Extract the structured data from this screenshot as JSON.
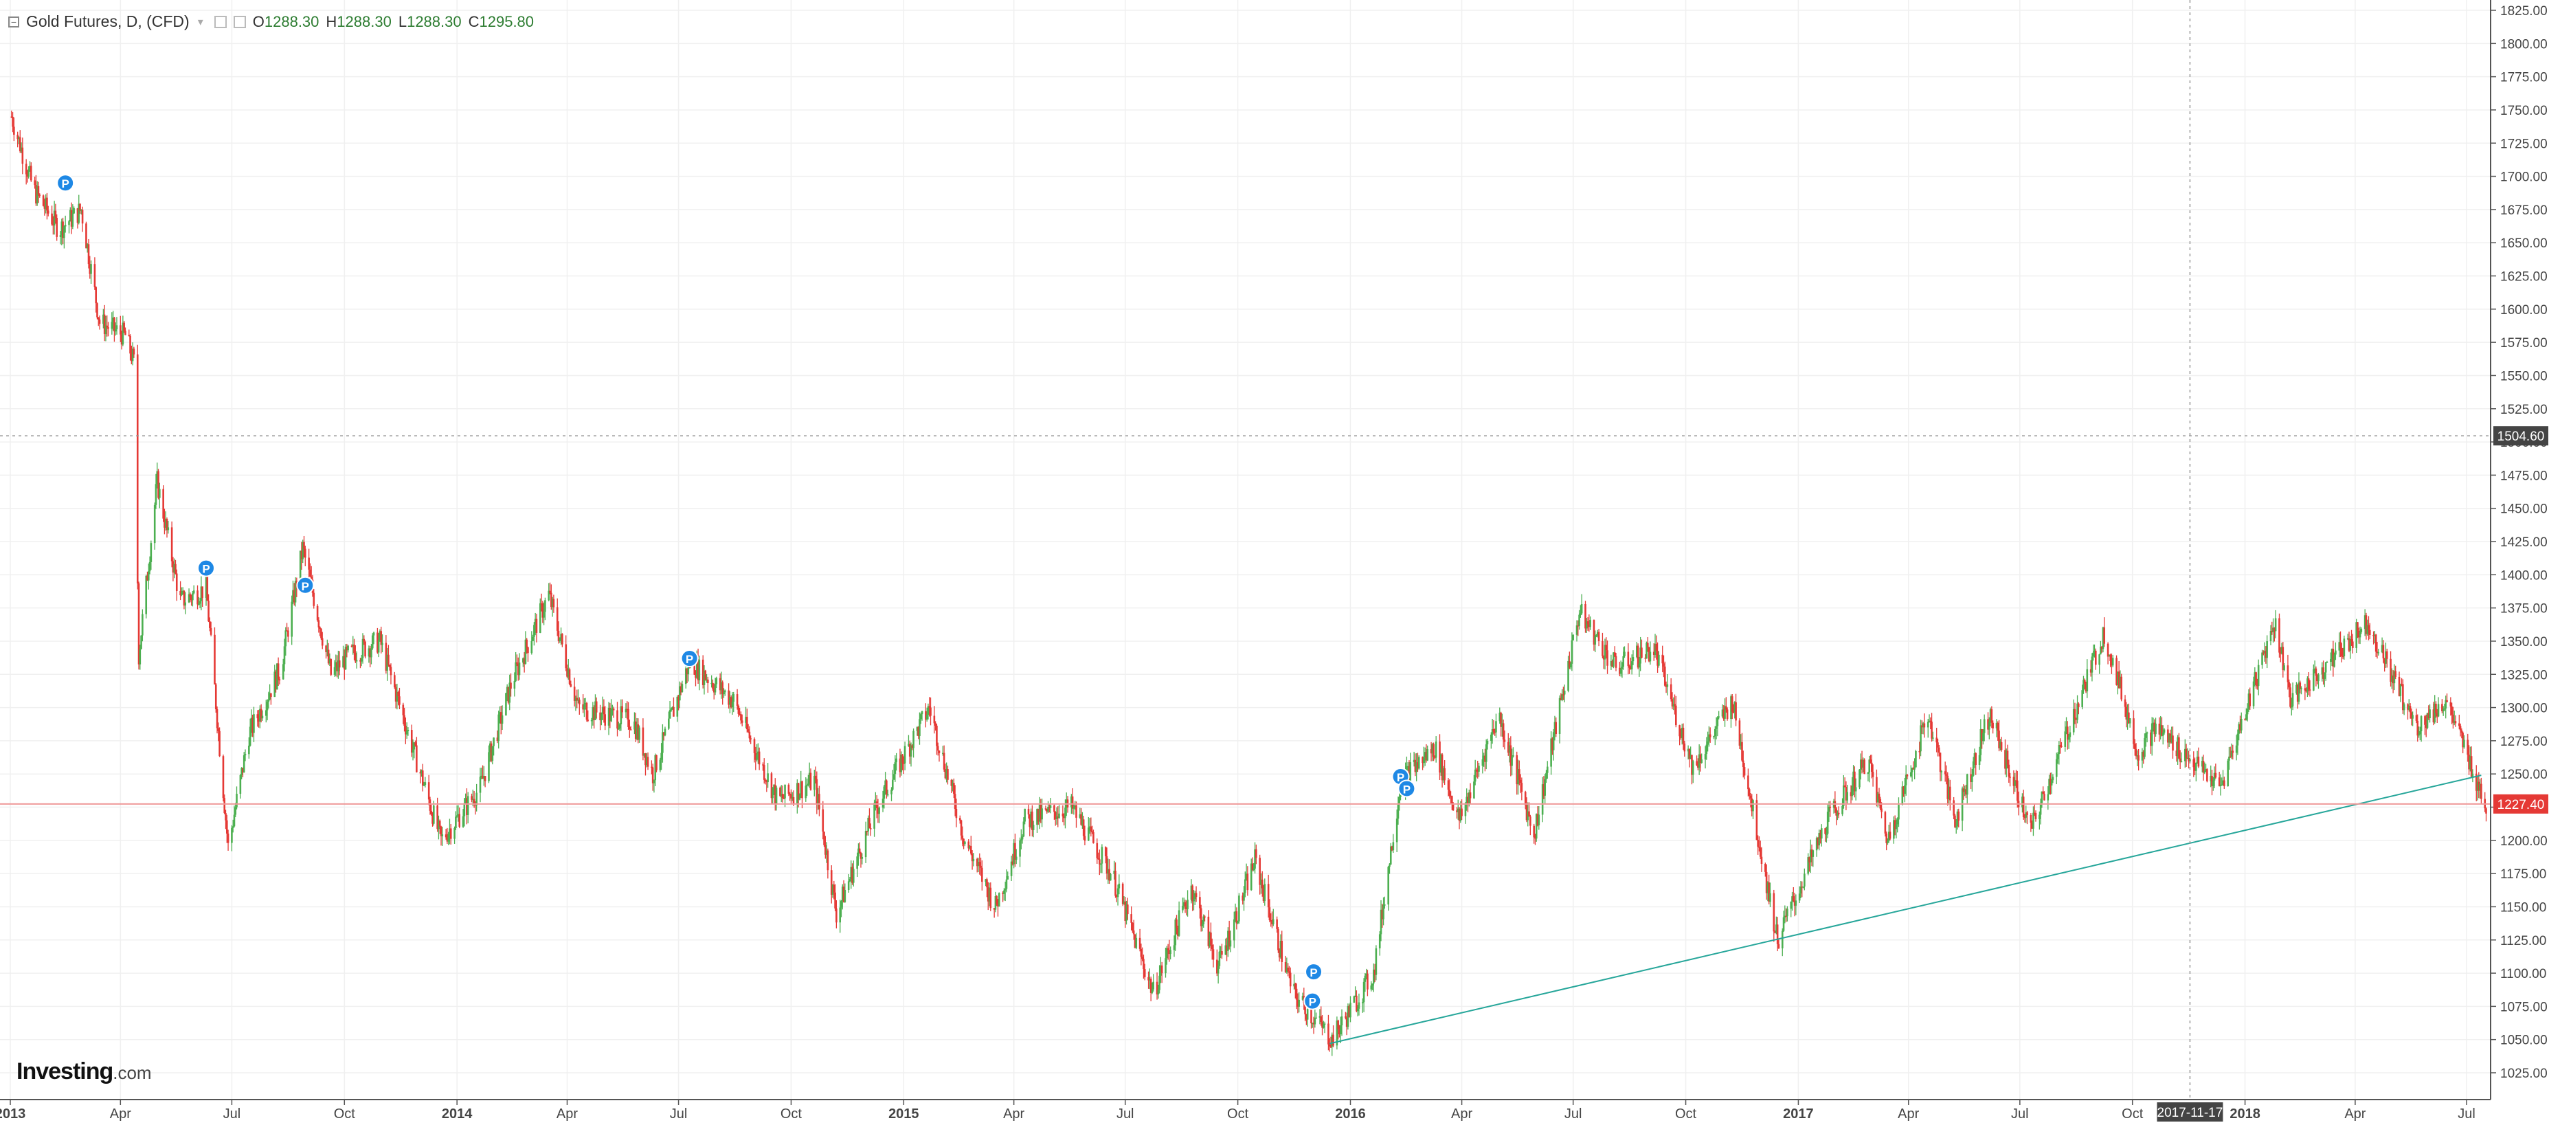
{
  "legend": {
    "symbol": "Gold Futures, D, (CFD)",
    "open_label": "O",
    "open": "1288.30",
    "high_label": "H",
    "high": "1288.30",
    "low_label": "L",
    "low": "1288.30",
    "close_label": "C",
    "close": "1295.80"
  },
  "logo": {
    "brand": "Investing",
    "suffix": ".com"
  },
  "colors": {
    "up": "#4caf50",
    "down": "#e53935",
    "trendline": "#26a69a",
    "price_line": "#ef9a9a",
    "price_badge": "#e53935",
    "crosshair_badge": "#444444",
    "marker": "#1e88e5",
    "grid": "#f0f0f0"
  },
  "crosshair": {
    "price": "1504.60",
    "date": "2017-11-17"
  },
  "chart_data": {
    "type": "candlestick",
    "title": "Gold Futures, D, (CFD)",
    "last_price": 1227.4,
    "ylim": [
      1012.5,
      1827.5
    ],
    "y_ticks": [
      "1025.00",
      "1050.00",
      "1075.00",
      "1100.00",
      "1125.00",
      "1150.00",
      "1175.00",
      "1200.00",
      "1225.00",
      "1250.00",
      "1275.00",
      "1300.00",
      "1325.00",
      "1350.00",
      "1375.00",
      "1400.00",
      "1425.00",
      "1450.00",
      "1475.00",
      "1500.00",
      "1525.00",
      "1550.00",
      "1575.00",
      "1600.00",
      "1625.00",
      "1650.00",
      "1675.00",
      "1700.00",
      "1725.00",
      "1750.00",
      "1775.00",
      "1800.00",
      "1825.00"
    ],
    "x_ticks": [
      {
        "label": "2013",
        "date": "2013-01-01",
        "bold": true
      },
      {
        "label": "Apr",
        "date": "2013-04-01"
      },
      {
        "label": "Jul",
        "date": "2013-07-01"
      },
      {
        "label": "Oct",
        "date": "2013-10-01"
      },
      {
        "label": "2014",
        "date": "2014-01-01",
        "bold": true
      },
      {
        "label": "Apr",
        "date": "2014-04-01"
      },
      {
        "label": "Jul",
        "date": "2014-07-01"
      },
      {
        "label": "Oct",
        "date": "2014-10-01"
      },
      {
        "label": "2015",
        "date": "2015-01-01",
        "bold": true
      },
      {
        "label": "Apr",
        "date": "2015-04-01"
      },
      {
        "label": "Jul",
        "date": "2015-07-01"
      },
      {
        "label": "Oct",
        "date": "2015-10-01"
      },
      {
        "label": "2016",
        "date": "2016-01-01",
        "bold": true
      },
      {
        "label": "Apr",
        "date": "2016-04-01"
      },
      {
        "label": "Jul",
        "date": "2016-07-01"
      },
      {
        "label": "Oct",
        "date": "2016-10-01"
      },
      {
        "label": "2017",
        "date": "2017-01-01",
        "bold": true
      },
      {
        "label": "Apr",
        "date": "2017-04-01"
      },
      {
        "label": "Jul",
        "date": "2017-07-01"
      },
      {
        "label": "Oct",
        "date": "2017-10-01"
      },
      {
        "label": "2018",
        "date": "2018-01-01",
        "bold": true
      },
      {
        "label": "Apr",
        "date": "2018-04-01"
      },
      {
        "label": "Jul",
        "date": "2018-07-01"
      }
    ],
    "trendline": {
      "from": {
        "date": "2015-12-15",
        "price": 1047
      },
      "to": {
        "date": "2018-07-13",
        "price": 1249
      }
    },
    "markers": [
      {
        "label": "P",
        "date": "2013-02-15",
        "price": 1695
      },
      {
        "label": "P",
        "date": "2013-06-10",
        "price": 1405
      },
      {
        "label": "P",
        "date": "2013-08-30",
        "price": 1392
      },
      {
        "label": "P",
        "date": "2014-07-10",
        "price": 1337
      },
      {
        "label": "P",
        "date": "2015-12-02",
        "price": 1101
      },
      {
        "label": "P",
        "date": "2015-12-01",
        "price": 1079
      },
      {
        "label": "P",
        "date": "2016-02-11",
        "price": 1248
      },
      {
        "label": "P",
        "date": "2016-02-16",
        "price": 1239
      }
    ],
    "price_path": [
      {
        "date": "2013-01-02",
        "price": 1745
      },
      {
        "date": "2013-01-20",
        "price": 1690
      },
      {
        "date": "2013-02-10",
        "price": 1660
      },
      {
        "date": "2013-02-28",
        "price": 1675
      },
      {
        "date": "2013-03-15",
        "price": 1590
      },
      {
        "date": "2013-04-05",
        "price": 1580
      },
      {
        "date": "2013-04-12",
        "price": 1560
      },
      {
        "date": "2013-04-16",
        "price": 1340
      },
      {
        "date": "2013-05-01",
        "price": 1470
      },
      {
        "date": "2013-05-20",
        "price": 1380
      },
      {
        "date": "2013-06-10",
        "price": 1390
      },
      {
        "date": "2013-06-28",
        "price": 1195
      },
      {
        "date": "2013-07-15",
        "price": 1280
      },
      {
        "date": "2013-08-10",
        "price": 1330
      },
      {
        "date": "2013-08-28",
        "price": 1420
      },
      {
        "date": "2013-09-20",
        "price": 1325
      },
      {
        "date": "2013-10-05",
        "price": 1340
      },
      {
        "date": "2013-10-30",
        "price": 1350
      },
      {
        "date": "2013-12-19",
        "price": 1200
      },
      {
        "date": "2014-01-20",
        "price": 1240
      },
      {
        "date": "2014-02-15",
        "price": 1320
      },
      {
        "date": "2014-03-17",
        "price": 1385
      },
      {
        "date": "2014-04-10",
        "price": 1300
      },
      {
        "date": "2014-05-25",
        "price": 1290
      },
      {
        "date": "2014-06-10",
        "price": 1250
      },
      {
        "date": "2014-07-10",
        "price": 1335
      },
      {
        "date": "2014-08-15",
        "price": 1305
      },
      {
        "date": "2014-09-20",
        "price": 1230
      },
      {
        "date": "2014-10-20",
        "price": 1245
      },
      {
        "date": "2014-11-07",
        "price": 1145
      },
      {
        "date": "2014-12-10",
        "price": 1225
      },
      {
        "date": "2015-01-22",
        "price": 1300
      },
      {
        "date": "2015-02-20",
        "price": 1200
      },
      {
        "date": "2015-03-17",
        "price": 1150
      },
      {
        "date": "2015-04-10",
        "price": 1215
      },
      {
        "date": "2015-05-18",
        "price": 1225
      },
      {
        "date": "2015-06-20",
        "price": 1175
      },
      {
        "date": "2015-07-24",
        "price": 1085
      },
      {
        "date": "2015-08-24",
        "price": 1165
      },
      {
        "date": "2015-09-15",
        "price": 1105
      },
      {
        "date": "2015-10-15",
        "price": 1185
      },
      {
        "date": "2015-11-15",
        "price": 1085
      },
      {
        "date": "2015-12-17",
        "price": 1050
      },
      {
        "date": "2016-01-20",
        "price": 1100
      },
      {
        "date": "2016-02-11",
        "price": 1245
      },
      {
        "date": "2016-03-10",
        "price": 1270
      },
      {
        "date": "2016-03-30",
        "price": 1215
      },
      {
        "date": "2016-05-01",
        "price": 1295
      },
      {
        "date": "2016-05-30",
        "price": 1205
      },
      {
        "date": "2016-07-06",
        "price": 1372
      },
      {
        "date": "2016-08-05",
        "price": 1330
      },
      {
        "date": "2016-09-05",
        "price": 1345
      },
      {
        "date": "2016-10-07",
        "price": 1255
      },
      {
        "date": "2016-11-08",
        "price": 1305
      },
      {
        "date": "2016-12-15",
        "price": 1125
      },
      {
        "date": "2017-01-25",
        "price": 1215
      },
      {
        "date": "2017-02-27",
        "price": 1260
      },
      {
        "date": "2017-03-15",
        "price": 1200
      },
      {
        "date": "2017-04-17",
        "price": 1295
      },
      {
        "date": "2017-05-09",
        "price": 1215
      },
      {
        "date": "2017-06-06",
        "price": 1295
      },
      {
        "date": "2017-07-10",
        "price": 1207
      },
      {
        "date": "2017-09-08",
        "price": 1357
      },
      {
        "date": "2017-10-06",
        "price": 1265
      },
      {
        "date": "2017-10-20",
        "price": 1285
      },
      {
        "date": "2017-12-12",
        "price": 1240
      },
      {
        "date": "2018-01-25",
        "price": 1365
      },
      {
        "date": "2018-02-08",
        "price": 1305
      },
      {
        "date": "2018-04-11",
        "price": 1365
      },
      {
        "date": "2018-05-21",
        "price": 1285
      },
      {
        "date": "2018-06-14",
        "price": 1305
      },
      {
        "date": "2018-07-17",
        "price": 1227
      }
    ]
  }
}
